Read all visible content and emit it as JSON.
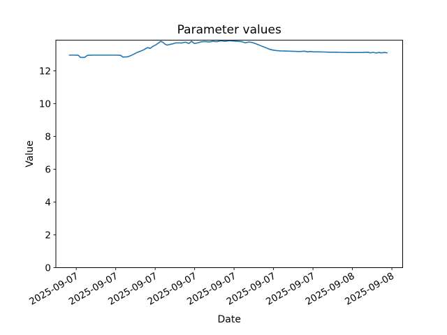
{
  "chart_data": {
    "type": "line",
    "title": "Parameter values",
    "xlabel": "Date",
    "ylabel": "Value",
    "line_color": "#1f77b4",
    "axis_color": "#000000",
    "background_color": "#ffffff",
    "grid": false,
    "legend": false,
    "xlim": [
      -1.55,
      24.82
    ],
    "ylim": [
      0,
      13.87
    ],
    "y_ticks": [
      0,
      2,
      4,
      6,
      8,
      10,
      12
    ],
    "x_ticks": [
      0,
      3,
      6,
      9,
      12,
      15,
      18,
      21,
      24
    ],
    "x_tick_labels": [
      "2025-09-07",
      "2025-09-07",
      "2025-09-07",
      "2025-09-07",
      "2025-09-07",
      "2025-09-07",
      "2025-09-07",
      "2025-09-08",
      "2025-09-08"
    ],
    "x_tick_rotation_deg": 30,
    "series": [
      {
        "x": [
          -0.53,
          -0.11,
          0.16,
          0.32,
          0.64,
          0.85,
          1.33,
          2.13,
          2.92,
          3.35,
          3.56,
          3.93,
          4.2,
          4.41,
          4.62,
          4.89,
          5.15,
          5.42,
          5.63,
          5.84,
          6.06,
          6.27,
          6.43,
          6.59,
          6.75,
          6.91,
          7.12,
          7.33,
          7.55,
          7.76,
          8.02,
          8.29,
          8.55,
          8.77,
          8.98,
          9.25,
          9.51,
          9.78,
          10.1,
          10.36,
          10.68,
          11.0,
          11.32,
          11.64,
          11.96,
          12.27,
          12.59,
          12.86,
          13.12,
          13.34,
          13.6,
          13.87,
          14.13,
          14.4,
          14.66,
          14.93,
          15.2,
          15.52,
          15.83,
          16.21,
          16.58,
          17.0,
          17.37,
          17.59,
          17.8,
          18.07,
          18.44,
          18.86,
          19.29,
          19.71,
          20.19,
          20.72,
          21.25,
          21.78,
          22.16,
          22.37,
          22.58,
          22.79,
          23.01,
          23.22,
          23.43,
          23.64
        ],
        "y": [
          12.96,
          12.96,
          12.95,
          12.82,
          12.82,
          12.95,
          12.96,
          12.96,
          12.96,
          12.95,
          12.84,
          12.86,
          12.95,
          13.03,
          13.12,
          13.2,
          13.29,
          13.42,
          13.37,
          13.5,
          13.59,
          13.71,
          13.8,
          13.74,
          13.63,
          13.57,
          13.61,
          13.65,
          13.7,
          13.71,
          13.7,
          13.75,
          13.67,
          13.8,
          13.67,
          13.71,
          13.77,
          13.79,
          13.76,
          13.8,
          13.78,
          13.83,
          13.8,
          13.84,
          13.82,
          13.8,
          13.78,
          13.71,
          13.76,
          13.74,
          13.67,
          13.59,
          13.5,
          13.42,
          13.33,
          13.27,
          13.24,
          13.22,
          13.21,
          13.2,
          13.19,
          13.18,
          13.2,
          13.16,
          13.18,
          13.16,
          13.16,
          13.15,
          13.14,
          13.14,
          13.13,
          13.12,
          13.12,
          13.12,
          13.14,
          13.1,
          13.13,
          13.09,
          13.12,
          13.1,
          13.12,
          13.1
        ]
      }
    ]
  }
}
